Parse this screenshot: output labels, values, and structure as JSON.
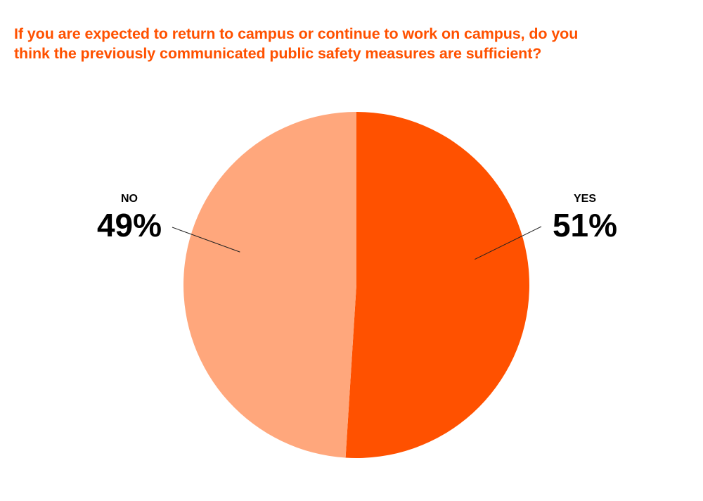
{
  "chart_data": {
    "type": "pie",
    "title_lines": [
      "If you are expected to return to campus or continue to work on campus, do you",
      "think the previously communicated public safety measures are sufficient?"
    ],
    "slices": [
      {
        "label": "YES",
        "value": 51,
        "value_text": "51%",
        "color": "#ff5100"
      },
      {
        "label": "NO",
        "value": 49,
        "value_text": "49%",
        "color": "#ffa77c"
      }
    ]
  }
}
